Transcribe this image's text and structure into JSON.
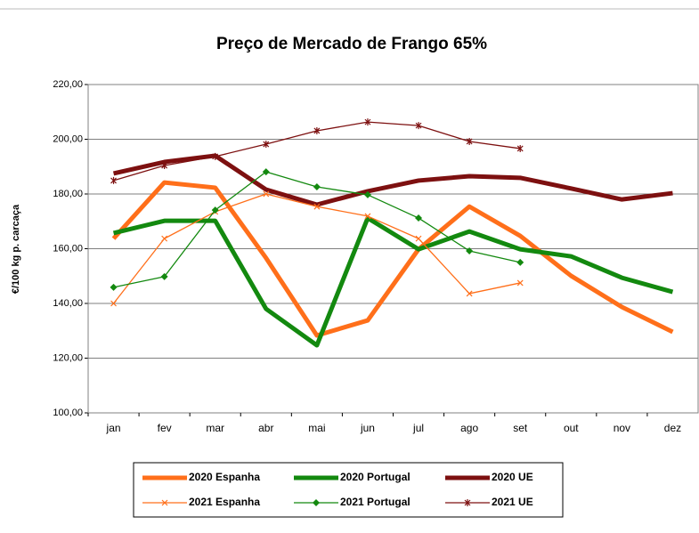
{
  "chart_data": {
    "type": "line",
    "title": "Preço de Mercado de Frango 65%",
    "y_label": "€/100 kg p. carcaça",
    "categories": [
      "jan",
      "fev",
      "mar",
      "abr",
      "mai",
      "jun",
      "jul",
      "ago",
      "set",
      "out",
      "nov",
      "dez"
    ],
    "ylim": [
      100,
      220
    ],
    "yticks": [
      {
        "value": 100,
        "label": "100,00"
      },
      {
        "value": 120,
        "label": "120,00"
      },
      {
        "value": 140,
        "label": "140,00"
      },
      {
        "value": 160,
        "label": "160,00"
      },
      {
        "value": 180,
        "label": "180,00"
      },
      {
        "value": 200,
        "label": "200,00"
      },
      {
        "value": 220,
        "label": "220,00"
      }
    ],
    "grid": true,
    "series": [
      {
        "name": "2020 Espanha",
        "color": "#ff6f1a",
        "width": 5,
        "marker": "none",
        "values": [
          163.7,
          184.2,
          182.3,
          156.6,
          128.3,
          133.8,
          159.8,
          175.4,
          164.7,
          150.1,
          138.7,
          129.6
        ]
      },
      {
        "name": "2020 Portugal",
        "color": "#13890f",
        "width": 5,
        "marker": "none",
        "values": [
          165.7,
          170.2,
          170.2,
          138.0,
          124.7,
          171.2,
          159.8,
          166.3,
          159.8,
          157.2,
          149.4,
          144.2
        ]
      },
      {
        "name": "2020 UE",
        "color": "#7d1010",
        "width": 5,
        "marker": "none",
        "values": [
          187.5,
          191.7,
          194.0,
          181.6,
          176.1,
          181.0,
          184.9,
          186.5,
          185.9,
          182.0,
          178.0,
          180.3
        ]
      },
      {
        "name": "2021 Espanha",
        "color": "#ff6f1a",
        "width": 1.3,
        "marker": "x",
        "values": [
          140.0,
          163.7,
          173.5,
          180.0,
          175.4,
          171.9,
          163.7,
          143.6,
          147.5,
          null,
          null,
          null
        ]
      },
      {
        "name": "2021 Portugal",
        "color": "#13890f",
        "width": 1.3,
        "marker": "diamond",
        "values": [
          145.9,
          149.8,
          174.1,
          188.1,
          182.6,
          179.7,
          171.2,
          159.2,
          155.0,
          null,
          null,
          null
        ]
      },
      {
        "name": "2021 UE",
        "color": "#7d1010",
        "width": 1.3,
        "marker": "star",
        "values": [
          184.9,
          190.4,
          193.7,
          198.2,
          203.1,
          206.3,
          205.0,
          199.2,
          196.6,
          null,
          null,
          null
        ]
      }
    ]
  }
}
